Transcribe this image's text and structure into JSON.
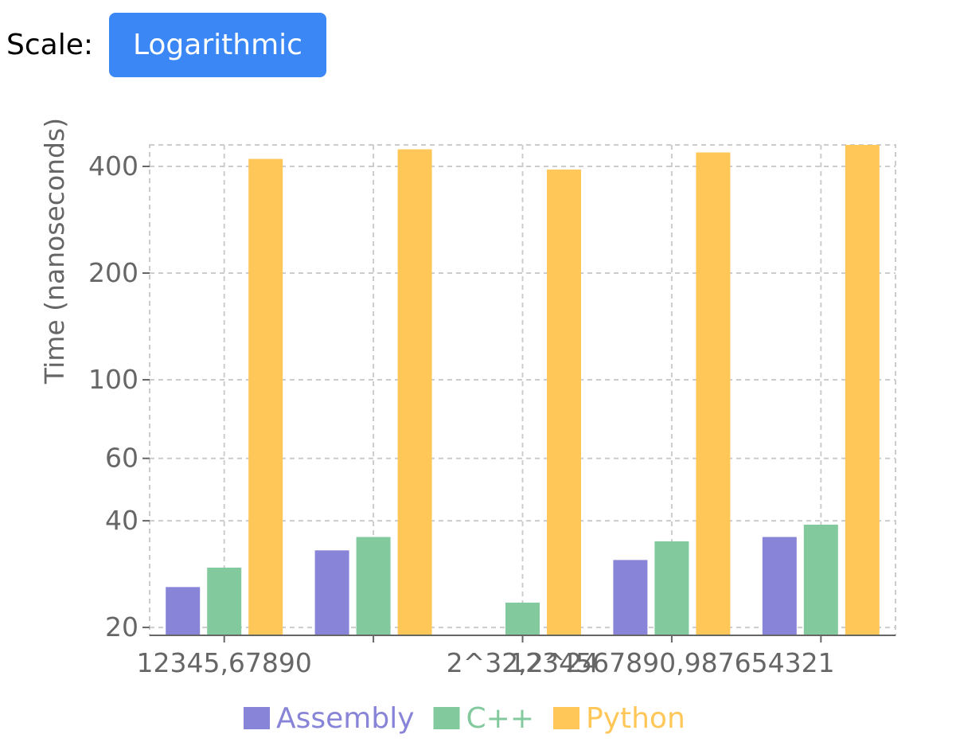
{
  "toolbar": {
    "scale_label": "Scale:",
    "scale_button_label": "Logarithmic",
    "scale_button_color": "#3b87f5"
  },
  "chart_data": {
    "type": "bar",
    "scale": "log",
    "title": "",
    "xlabel": "",
    "ylabel": "Time (nanoseconds)",
    "ylim": [
      19,
      460
    ],
    "yticks": [
      20,
      40,
      60,
      100,
      200,
      400
    ],
    "grid": true,
    "legend_position": "bottom",
    "categories": [
      "12345,67890",
      "",
      "2^32,2^24",
      "1234567890,987654321",
      ""
    ],
    "series": [
      {
        "name": "Assembly",
        "color": "#8884d8",
        "values": [
          26,
          33,
          null,
          31,
          36
        ]
      },
      {
        "name": "C++",
        "color": "#82ca9d",
        "values": [
          29.5,
          36,
          23.5,
          35,
          39
        ]
      },
      {
        "name": "Python",
        "color": "#ffc658",
        "values": [
          420,
          447,
          392,
          438,
          460
        ]
      }
    ]
  }
}
